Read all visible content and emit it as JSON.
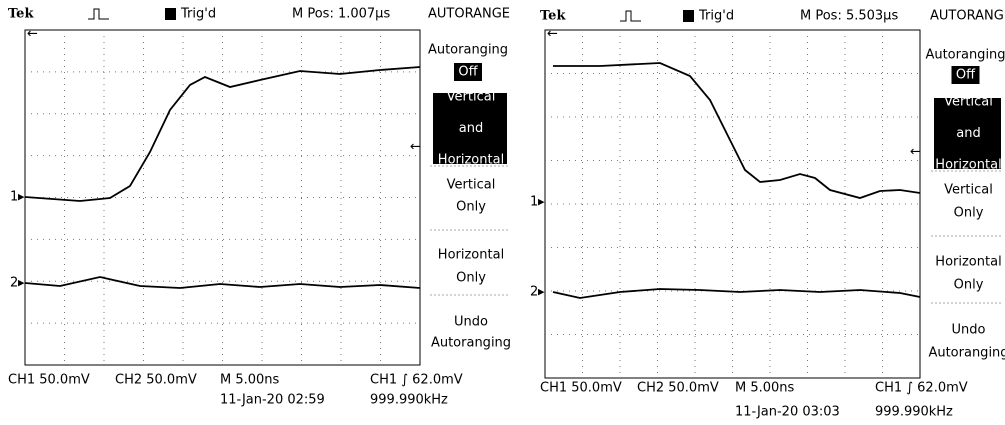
{
  "panels": [
    {
      "header": {
        "brand": "Tek",
        "trigger": "Trig'd",
        "position": "M Pos: 1.007µs",
        "mode": "AUTORANGE"
      },
      "channels": [
        "1",
        "2"
      ],
      "menu": {
        "autoranging": "Autoranging",
        "state": "Off",
        "items": [
          [
            "Vertical",
            "and",
            "Horizontal"
          ],
          [
            "Vertical",
            "Only"
          ],
          [
            "Horizontal",
            "Only"
          ],
          [
            "Undo",
            "Autoranging"
          ]
        ]
      },
      "footer": {
        "ch1": "CH1  50.0mV",
        "ch2": "CH2  50.0mV",
        "timebase": "M 5.00ns",
        "trigger_level": "CH1 ∫ 62.0mV",
        "date": "11-Jan-20 02:59",
        "frequency": "999.990kHz"
      }
    },
    {
      "header": {
        "brand": "Tek",
        "trigger": "Trig'd",
        "position": "M Pos: 5.503µs",
        "mode": "AUTORANGE"
      },
      "channels": [
        "1",
        "2"
      ],
      "menu": {
        "autoranging": "Autoranging",
        "state": "Off",
        "items": [
          [
            "Vertical",
            "and",
            "Horizontal"
          ],
          [
            "Vertical",
            "Only"
          ],
          [
            "Horizontal",
            "Only"
          ],
          [
            "Undo",
            "Autoranging"
          ]
        ]
      },
      "footer": {
        "ch1": "CH1  50.0mV",
        "ch2": "CH2  50.0mV",
        "timebase": "M 5.00ns",
        "trigger_level": "CH1 ∫ 62.0mV",
        "date": "11-Jan-20 03:03",
        "frequency": "999.990kHz"
      }
    }
  ]
}
